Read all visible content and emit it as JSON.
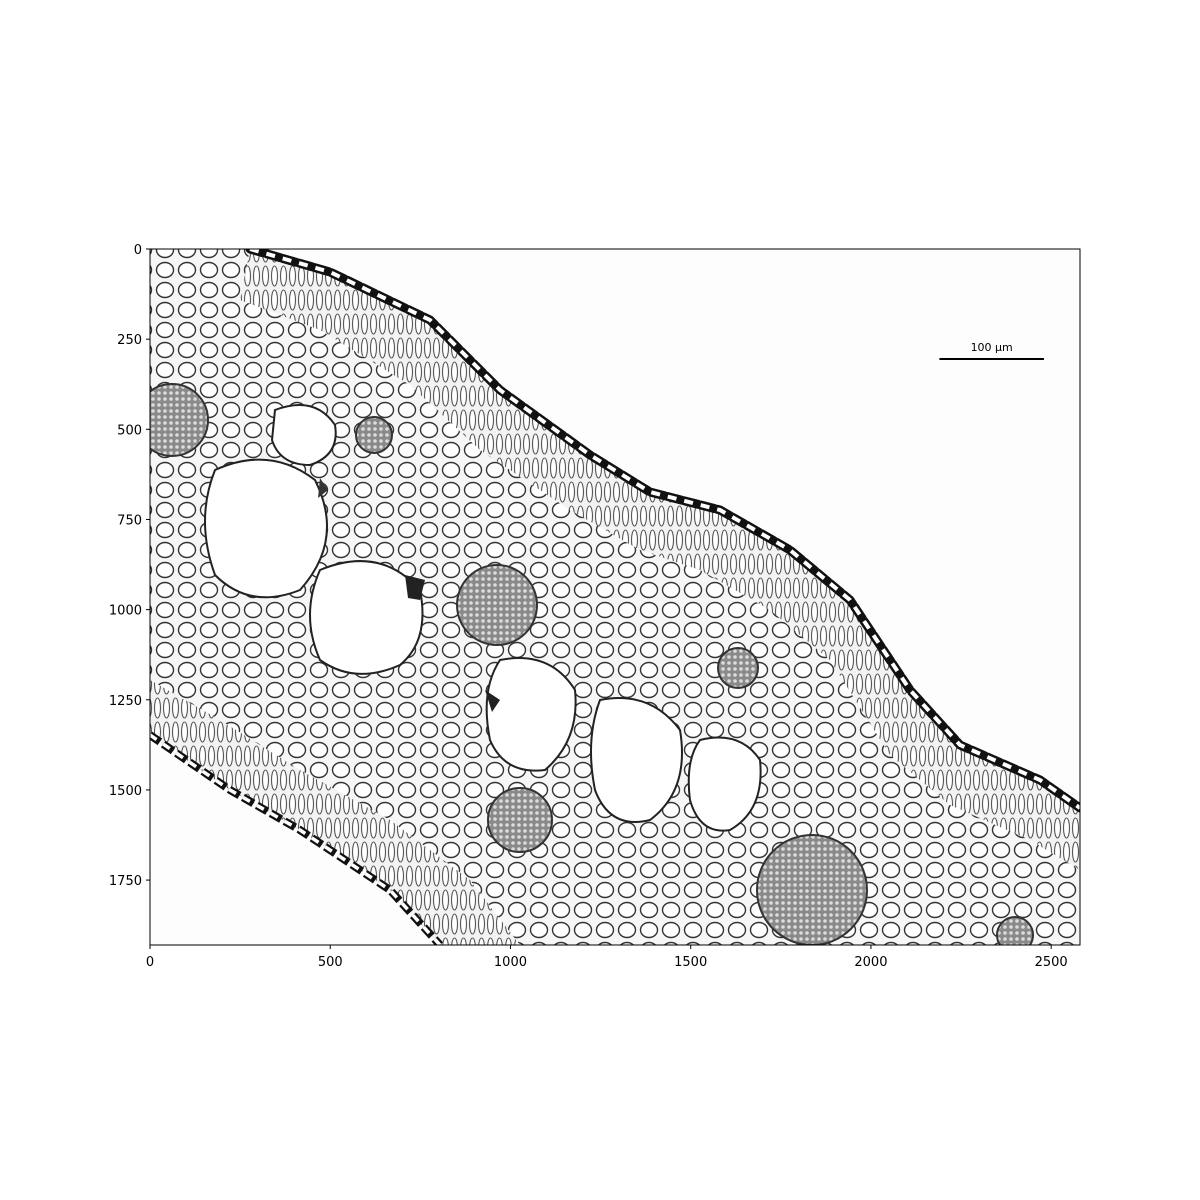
{
  "image": {
    "description_name": "leaf-cross-section-micrograph",
    "width_units": 2580,
    "height_units": 1930
  },
  "axes": {
    "x_ticks": [
      0,
      500,
      1000,
      1500,
      2000,
      2500
    ],
    "y_ticks": [
      0,
      250,
      500,
      750,
      1000,
      1250,
      1500,
      1750
    ],
    "xlim": [
      0,
      2580
    ],
    "ylim": [
      1930,
      0
    ]
  },
  "scale_bar": {
    "label": "100 µm",
    "x_start": 2190,
    "x_end": 2480,
    "y": 305
  },
  "colors": {
    "background": "#ffffff",
    "specimen_fill": "#f4f4f4",
    "cell_wall": "#2a2a2a",
    "epidermis": "#111111",
    "bundle": "#6a6a6a"
  }
}
